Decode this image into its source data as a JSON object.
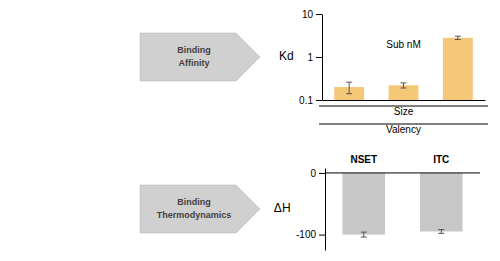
{
  "chart_data": [
    {
      "type": "bar",
      "title": "Binding Affinity",
      "ylabel": "Kd",
      "categories": [
        null,
        null,
        null
      ],
      "values": [
        0.2,
        0.22,
        2.8
      ],
      "errors": [
        0.06,
        0.03,
        0.25
      ],
      "color": "#F5C878",
      "log": "y",
      "ylim": [
        0.1,
        10
      ],
      "yticks": [
        0.1,
        1,
        10
      ],
      "tick_labels": "y",
      "annotations": [
        "Sub nM",
        "Size",
        "Valency"
      ]
    },
    {
      "type": "bar",
      "title": "Binding Thermodynamics",
      "ylabel": "ΔH",
      "categories": [
        "NSET",
        "ITC"
      ],
      "values": [
        -100,
        -95
      ],
      "errors": [
        4,
        3
      ],
      "color": "#C8C8C8",
      "ylim": [
        -125,
        8
      ],
      "yticks": [
        0,
        -100
      ]
    }
  ]
}
